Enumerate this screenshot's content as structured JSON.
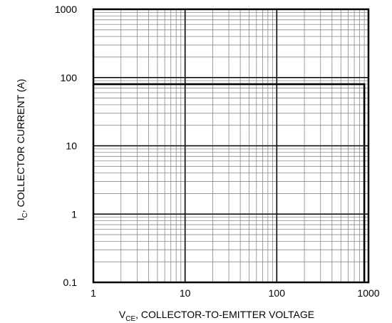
{
  "chart_data": {
    "type": "line",
    "title": "",
    "x_axis": {
      "label_main": "V",
      "label_sub": "CE",
      "label_rest": ", COLLECTOR-TO-EMITTER VOLTAGE",
      "scale": "log",
      "range": [
        1,
        1000
      ],
      "ticks": [
        1,
        10,
        100,
        1000
      ],
      "tick_labels": [
        "1",
        "10",
        "100",
        "1000"
      ]
    },
    "y_axis": {
      "label_main": "I",
      "label_sub": "C",
      "label_rest": ", COLLECTOR CURRENT (A)",
      "scale": "log",
      "range": [
        0.1,
        1000
      ],
      "ticks": [
        0.1,
        1,
        10,
        100,
        1000
      ],
      "tick_labels": [
        "0.1",
        "1",
        "10",
        "100",
        "1000"
      ]
    },
    "grid": "major and minor (log)",
    "legend": "none",
    "series": [
      {
        "x": [
          1,
          900,
          900
        ],
        "y": [
          80,
          80,
          0.1
        ]
      }
    ]
  }
}
